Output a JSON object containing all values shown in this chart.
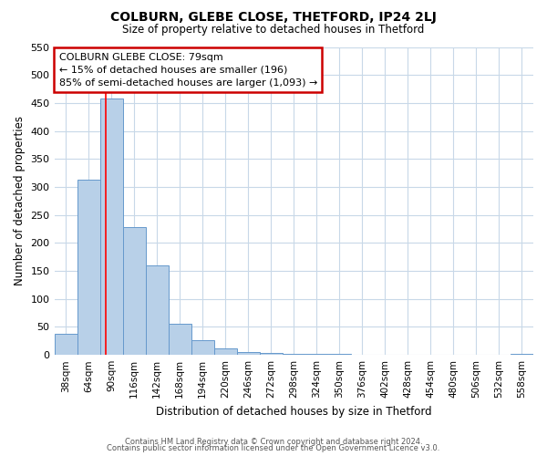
{
  "title": "COLBURN, GLEBE CLOSE, THETFORD, IP24 2LJ",
  "subtitle": "Size of property relative to detached houses in Thetford",
  "xlabel": "Distribution of detached houses by size in Thetford",
  "ylabel": "Number of detached properties",
  "bar_labels": [
    "38sqm",
    "64sqm",
    "90sqm",
    "116sqm",
    "142sqm",
    "168sqm",
    "194sqm",
    "220sqm",
    "246sqm",
    "272sqm",
    "298sqm",
    "324sqm",
    "350sqm",
    "376sqm",
    "402sqm",
    "428sqm",
    "454sqm",
    "480sqm",
    "506sqm",
    "532sqm",
    "558sqm"
  ],
  "bar_values": [
    38,
    313,
    458,
    228,
    160,
    55,
    27,
    12,
    5,
    3,
    2,
    2,
    2,
    0,
    0,
    0,
    0,
    0,
    0,
    0,
    2
  ],
  "bar_color": "#b8d0e8",
  "bar_edge_color": "#6699cc",
  "ylim": [
    0,
    550
  ],
  "yticks": [
    0,
    50,
    100,
    150,
    200,
    250,
    300,
    350,
    400,
    450,
    500,
    550
  ],
  "annotation_box_text": "COLBURN GLEBE CLOSE: 79sqm\n← 15% of detached houses are smaller (196)\n85% of semi-detached houses are larger (1,093) →",
  "red_line_x": 1.77,
  "footnote1": "Contains HM Land Registry data © Crown copyright and database right 2024.",
  "footnote2": "Contains public sector information licensed under the Open Government Licence v3.0.",
  "background_color": "#ffffff",
  "grid_color": "#c8d8e8",
  "annotation_box_edge": "#cc0000"
}
